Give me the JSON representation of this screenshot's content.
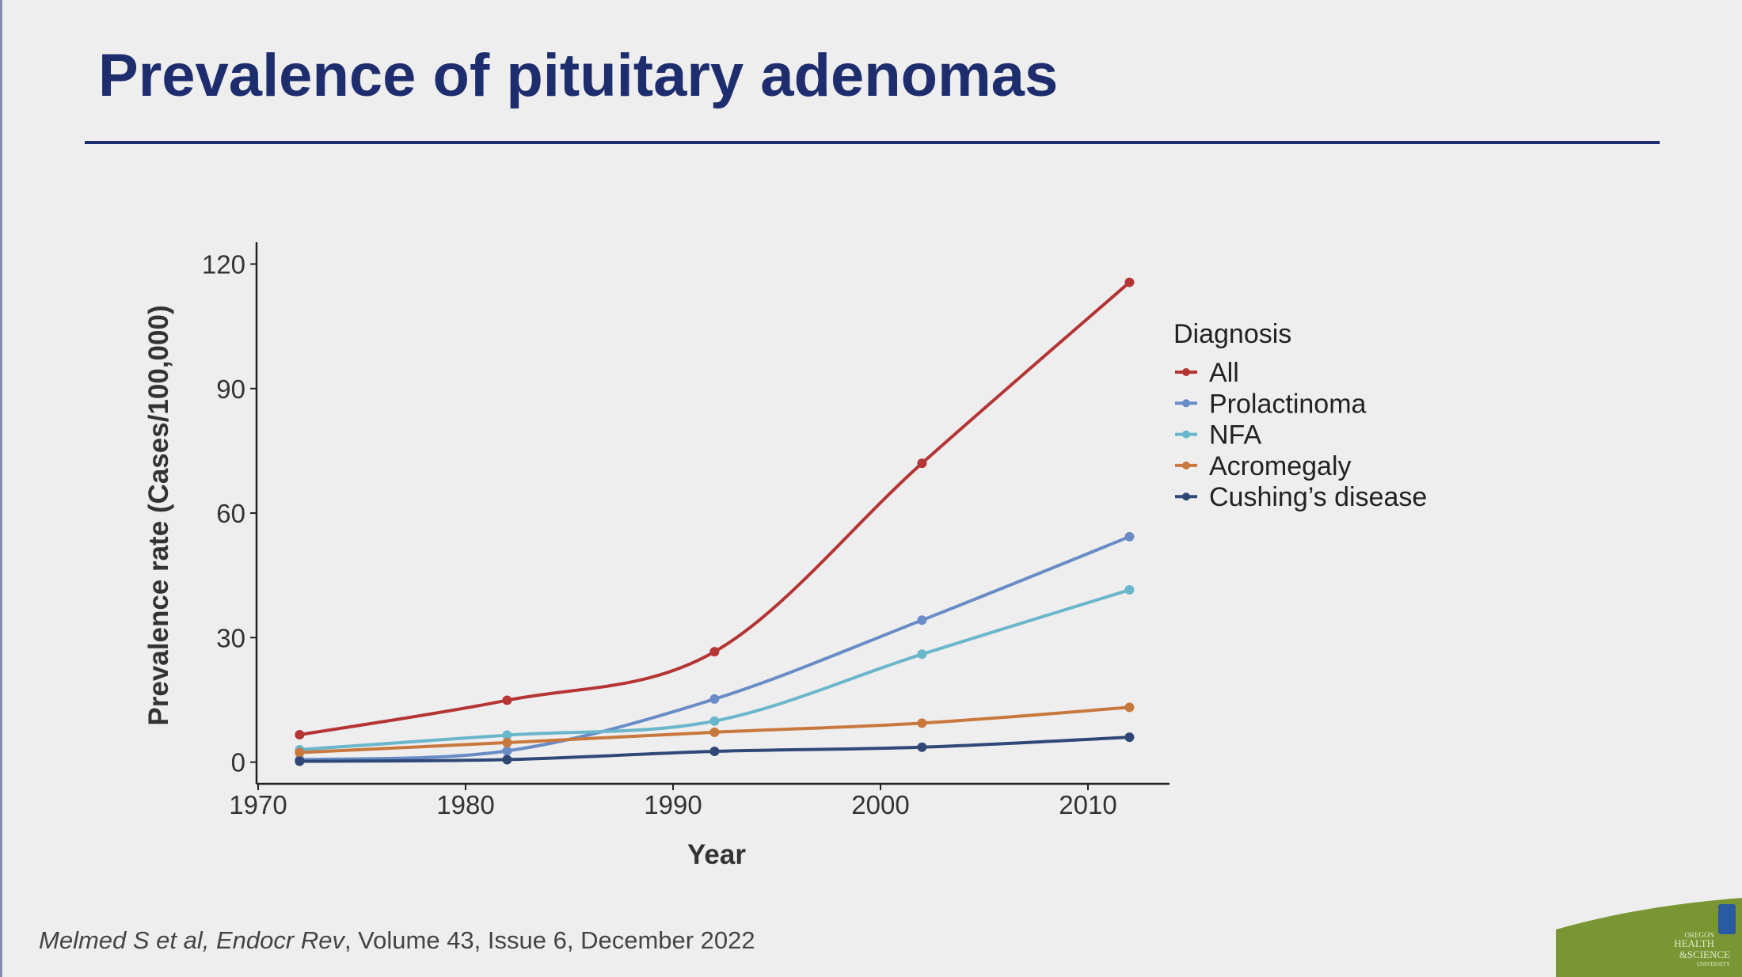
{
  "slide": {
    "title": "Prevalence of pituitary adenomas",
    "citation_authors": "Melmed S et al, ",
    "citation_journal": "Endocr Rev",
    "citation_rest": ", Volume 43, Issue 6, December 2022",
    "logo_text": "OREGON HEALTH & SCIENCE UNIVERSITY"
  },
  "chart_data": {
    "type": "line",
    "title": "",
    "xlabel": "Year",
    "ylabel": "Prevalence rate (Cases/100,000)",
    "xlim": [
      1970,
      2014
    ],
    "ylim": [
      -4,
      124
    ],
    "xticks": [
      1970,
      1980,
      1990,
      2000,
      2010
    ],
    "yticks": [
      0,
      30,
      60,
      90,
      120
    ],
    "legend_title": "Diagnosis",
    "legend_position": "right",
    "grid": false,
    "x": [
      1972,
      1982,
      1992,
      2002,
      2012
    ],
    "series": [
      {
        "name": "All",
        "color": "#b53434",
        "values": [
          6.6,
          14.9,
          26.6,
          72.0,
          115.6
        ]
      },
      {
        "name": "Prolactinoma",
        "color": "#6a8cc6",
        "values": [
          0.6,
          2.7,
          15.2,
          34.2,
          54.3
        ]
      },
      {
        "name": "NFA",
        "color": "#6ab6cb",
        "values": [
          3.0,
          6.5,
          9.9,
          26.0,
          41.5
        ]
      },
      {
        "name": "Acromegaly",
        "color": "#c9783d",
        "values": [
          2.3,
          4.7,
          7.2,
          9.4,
          13.2
        ]
      },
      {
        "name": "Cushing’s disease",
        "color": "#2f4877",
        "values": [
          0.2,
          0.6,
          2.6,
          3.6,
          6.0
        ]
      }
    ]
  }
}
